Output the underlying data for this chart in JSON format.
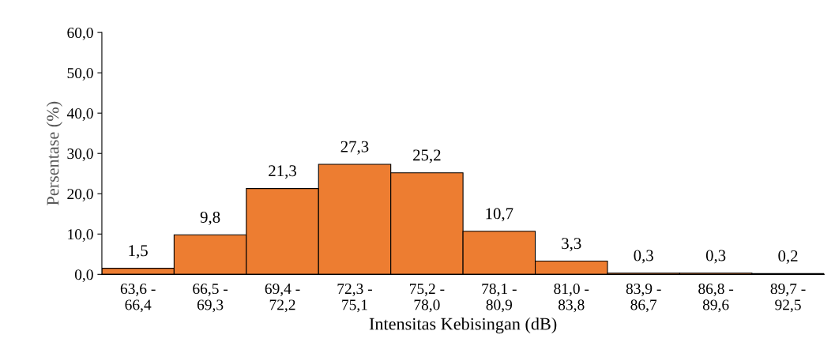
{
  "chart_data": {
    "type": "bar",
    "xlabel": "Intensitas Kebisingan (dB)",
    "ylabel": "Persentase (%)",
    "categories": [
      "63,6 -\n66,4",
      "66,5 -\n69,3",
      "69,4 -\n72,2",
      "72,3 -\n75,1",
      "75,2 -\n78,0",
      "78,1 -\n80,9",
      "81,0 -\n83,8",
      "83,9 -\n86,7",
      "86,8 -\n89,6",
      "89,7 -\n92,5"
    ],
    "values": [
      1.5,
      9.8,
      21.3,
      27.3,
      25.2,
      10.7,
      3.3,
      0.3,
      0.3,
      0.2
    ],
    "value_labels": [
      "1,5",
      "9,8",
      "21,3",
      "27,3",
      "25,2",
      "10,7",
      "3,3",
      "0,3",
      "0,3",
      "0,2"
    ],
    "color": "#ed7d31",
    "ylim": [
      0,
      60
    ],
    "yticks": [
      {
        "value": 0,
        "label": "0,0"
      },
      {
        "value": 10,
        "label": "10,0"
      },
      {
        "value": 20,
        "label": "20,0"
      },
      {
        "value": 30,
        "label": "30,0"
      },
      {
        "value": 40,
        "label": "40,0"
      },
      {
        "value": 50,
        "label": "50,0"
      },
      {
        "value": 60,
        "label": "60,0"
      }
    ],
    "grid": false,
    "legend": false
  }
}
